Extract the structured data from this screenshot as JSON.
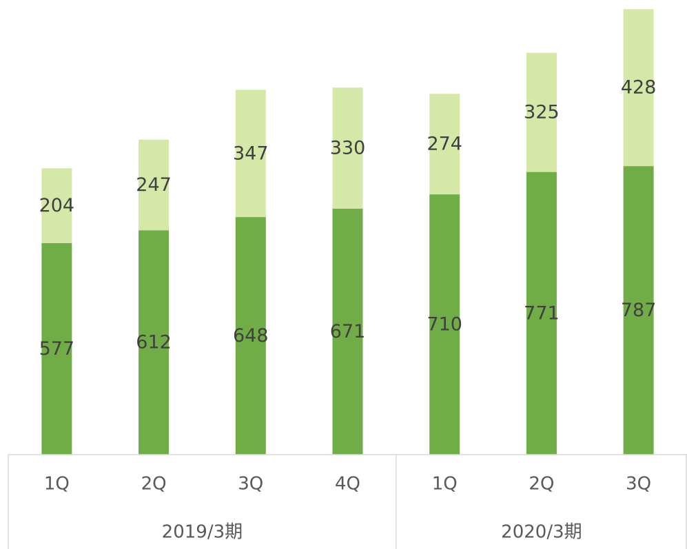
{
  "chart_data": {
    "type": "stacked_bar",
    "category_groups": [
      {
        "label": "2019/3期",
        "categories": [
          "1Q",
          "2Q",
          "3Q",
          "4Q"
        ]
      },
      {
        "label": "2020/3期",
        "categories": [
          "1Q",
          "2Q",
          "3Q"
        ]
      }
    ],
    "series": [
      {
        "color": "#70ad47",
        "values": [
          577,
          612,
          648,
          671,
          710,
          771,
          787
        ]
      },
      {
        "color": "#d5e8a8",
        "values": [
          204,
          247,
          347,
          330,
          274,
          325,
          428
        ]
      }
    ],
    "ylim": [
      0,
      1240
    ]
  }
}
